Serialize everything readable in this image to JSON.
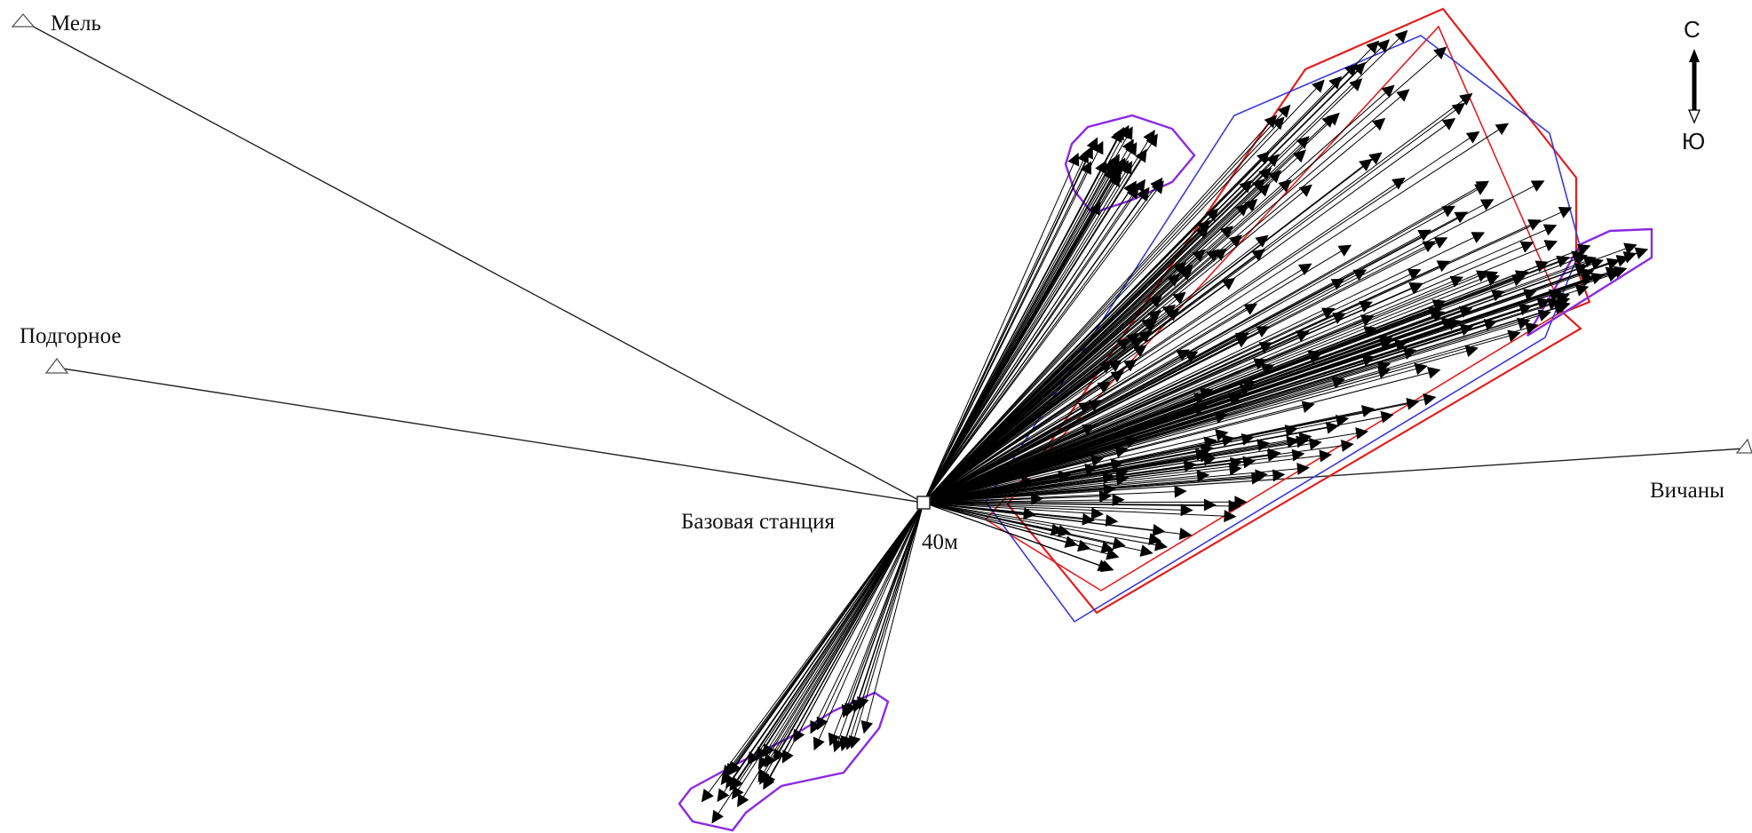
{
  "base_station": {
    "label": "Базовая станция",
    "height_label": "40м"
  },
  "control_points": [
    {
      "id": "mel",
      "label": "Мель"
    },
    {
      "id": "podgornoe",
      "label": "Подгорное"
    },
    {
      "id": "vichany",
      "label": "Вичаны"
    }
  ],
  "north_arrow": {
    "north_label": "С",
    "south_label": "Ю"
  },
  "colors": {
    "vector": "#000000",
    "boundary_red": "#e02020",
    "boundary_blue": "#3a3ad8",
    "boundary_purple": "#8a2be2",
    "control_line": "#222222"
  }
}
